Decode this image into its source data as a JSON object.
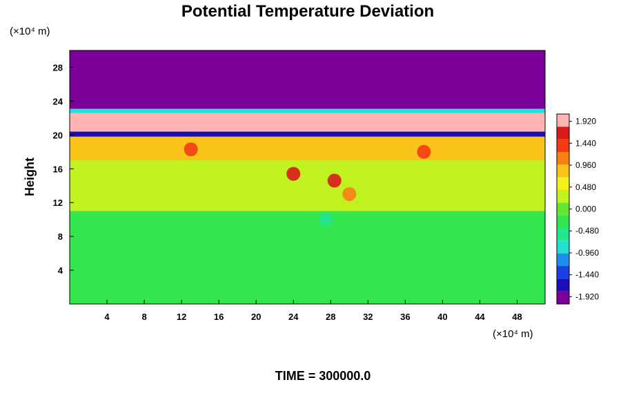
{
  "chart_data": {
    "type": "heatmap",
    "title": "Potential Temperature Deviation",
    "ylabel": "Height",
    "x_unit": "(×10⁴ m)",
    "y_unit": "(×10⁴ m)",
    "xlim": [
      0,
      51
    ],
    "ylim": [
      0,
      30
    ],
    "x_ticks": [
      4,
      8,
      12,
      16,
      20,
      24,
      28,
      32,
      36,
      40,
      44,
      48
    ],
    "y_ticks": [
      4,
      8,
      12,
      16,
      20,
      24,
      28
    ],
    "colorbar": {
      "min": -2.08,
      "max": 2.08,
      "tick_values": [
        1.92,
        1.44,
        0.96,
        0.48,
        0.0,
        -0.48,
        -0.96,
        -1.44,
        -1.92
      ],
      "tick_labels": [
        "1.920",
        "1.440",
        "0.960",
        "0.480",
        "0.000",
        "-0.480",
        "-0.960",
        "-1.440",
        "-1.920"
      ],
      "colors": [
        "#7a0099",
        "#1a0fb5",
        "#1e3fe6",
        "#1f8df0",
        "#22e0d2",
        "#22e690",
        "#33e64d",
        "#66e633",
        "#bff21f",
        "#f2f21a",
        "#f9c31a",
        "#f77f16",
        "#f23d14",
        "#d91a1a",
        "#ffb3b3"
      ]
    },
    "bands": [
      {
        "y0": 0,
        "y1": 11,
        "value": -0.15
      },
      {
        "y0": 11,
        "y1": 17,
        "value": 0.25
      },
      {
        "y0": 17,
        "y1": 19.8,
        "value": 0.9
      },
      {
        "y0": 19.8,
        "y1": 20.4,
        "value": -1.6
      },
      {
        "y0": 20.4,
        "y1": 22.6,
        "value": 2.1
      },
      {
        "y0": 22.6,
        "y1": 23.1,
        "value": -0.7
      },
      {
        "y0": 23.1,
        "y1": 30,
        "value": -2.1
      }
    ],
    "features": [
      {
        "x": 24,
        "y": 15.4,
        "value": 1.7
      },
      {
        "x": 28.4,
        "y": 14.6,
        "value": 1.6
      },
      {
        "x": 30,
        "y": 13,
        "value": 1.0
      },
      {
        "x": 27.5,
        "y": 10,
        "value": -0.6
      },
      {
        "x": 13,
        "y": 18.3,
        "value": 1.5
      },
      {
        "x": 38,
        "y": 18,
        "value": 1.4
      }
    ]
  },
  "footer": {
    "time_label": "TIME = 300000.0"
  }
}
